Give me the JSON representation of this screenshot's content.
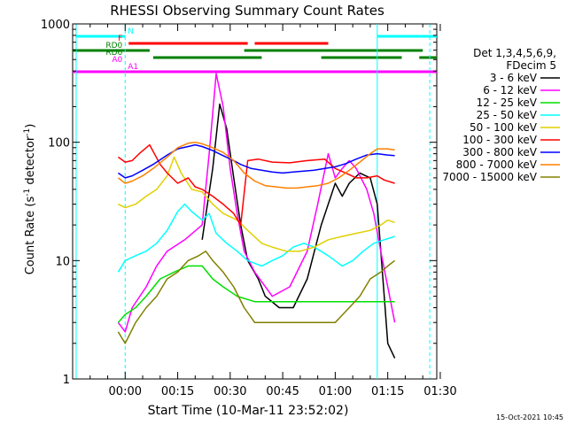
{
  "chart_data": {
    "type": "line",
    "title": "RHESSI Observing Summary Count Rates",
    "xlabel": "Start Time (10-Mar-11 23:52:02)",
    "ylabel_main": "Count Rate (s",
    "ylabel_sup1": "-1",
    "ylabel_mid": " detector",
    "ylabel_sup2": "-1",
    "ylabel_end": ")",
    "y_scale": "log",
    "ylim": [
      1,
      1000
    ],
    "xlim_minutes": [
      -7,
      97
    ],
    "x_ticks": [
      {
        "label": "00:00",
        "t": 8
      },
      {
        "label": "00:15",
        "t": 23
      },
      {
        "label": "00:30",
        "t": 38
      },
      {
        "label": "00:45",
        "t": 53
      },
      {
        "label": "01:00",
        "t": 68
      },
      {
        "label": "01:15",
        "t": 83
      },
      {
        "label": "01:30",
        "t": 98
      }
    ],
    "y_ticks": [
      {
        "label": "1",
        "v": 1
      },
      {
        "label": "10",
        "v": 10
      },
      {
        "label": "100",
        "v": 100
      },
      {
        "label": "1000",
        "v": 1000
      }
    ],
    "legend_header": [
      "Det 1,3,4,5,6,9,",
      "FDecim 5"
    ],
    "legend": [
      {
        "label": "3 - 6 keV",
        "color": "#000000"
      },
      {
        "label": "6 - 12 keV",
        "color": "#ff00ff"
      },
      {
        "label": "12 - 25 keV",
        "color": "#00e000"
      },
      {
        "label": "25 - 50 keV",
        "color": "#00ffff"
      },
      {
        "label": "50 - 100 keV",
        "color": "#e0d000"
      },
      {
        "label": "100 - 300 keV",
        "color": "#ff0000"
      },
      {
        "label": "300 - 800 keV",
        "color": "#0000ff"
      },
      {
        "label": "800 - 7000 keV",
        "color": "#ff8000"
      },
      {
        "label": "7000 - 15000 keV",
        "color": "#808000"
      }
    ],
    "flag_bars": [
      {
        "label": "N",
        "color": "#00ffff",
        "level": 1,
        "segments": [
          [
            -6,
            8
          ],
          [
            80,
            97
          ]
        ]
      },
      {
        "label": "F",
        "color": "#ff0000",
        "level": 2,
        "segments": [
          [
            9,
            43
          ],
          [
            45,
            66
          ]
        ]
      },
      {
        "label": "RD0",
        "color": "#008000",
        "level": 3,
        "segments": [
          [
            -7,
            15
          ],
          [
            42,
            93
          ]
        ]
      },
      {
        "label": "RD6",
        "color": "#008000",
        "level": 4,
        "segments": [
          [
            16,
            47
          ],
          [
            64,
            87
          ],
          [
            92,
            97
          ]
        ]
      },
      {
        "label": "A0",
        "color": "#ff00ff",
        "level": 5,
        "segments": []
      },
      {
        "label": "A1",
        "color": "#ff00ff",
        "level": 6,
        "segments": [
          [
            -7,
            8
          ],
          [
            8,
            97
          ]
        ]
      }
    ],
    "night_markers_minutes": [
      -6,
      8,
      80,
      95
    ],
    "series": [
      {
        "name": "3 - 6 keV",
        "color": "#000000",
        "points": [
          [
            30,
            15
          ],
          [
            33,
            60
          ],
          [
            35,
            210
          ],
          [
            37,
            130
          ],
          [
            39,
            50
          ],
          [
            41,
            20
          ],
          [
            43,
            10
          ],
          [
            46,
            7
          ],
          [
            48,
            5
          ],
          [
            52,
            4
          ],
          [
            56,
            4
          ],
          [
            60,
            7
          ],
          [
            64,
            20
          ],
          [
            68,
            45
          ],
          [
            70,
            35
          ],
          [
            72,
            45
          ],
          [
            75,
            55
          ],
          [
            78,
            50
          ],
          [
            80,
            30
          ],
          [
            82,
            5
          ],
          [
            83,
            2
          ],
          [
            85,
            1.5
          ]
        ]
      },
      {
        "name": "6 - 12 keV",
        "color": "#ff00ff",
        "points": [
          [
            6,
            3
          ],
          [
            8,
            2.5
          ],
          [
            10,
            4
          ],
          [
            14,
            6
          ],
          [
            17,
            9
          ],
          [
            20,
            12
          ],
          [
            25,
            15
          ],
          [
            30,
            20
          ],
          [
            32,
            80
          ],
          [
            34,
            380
          ],
          [
            36,
            200
          ],
          [
            38,
            60
          ],
          [
            40,
            25
          ],
          [
            42,
            12
          ],
          [
            45,
            8
          ],
          [
            50,
            5
          ],
          [
            55,
            6
          ],
          [
            60,
            12
          ],
          [
            63,
            30
          ],
          [
            66,
            80
          ],
          [
            68,
            50
          ],
          [
            70,
            60
          ],
          [
            72,
            70
          ],
          [
            74,
            60
          ],
          [
            77,
            40
          ],
          [
            79,
            25
          ],
          [
            81,
            12
          ],
          [
            83,
            6
          ],
          [
            85,
            3
          ]
        ]
      },
      {
        "name": "12 - 25 keV",
        "color": "#00e000",
        "points": [
          [
            6,
            3
          ],
          [
            8,
            3.5
          ],
          [
            11,
            4
          ],
          [
            14,
            5
          ],
          [
            18,
            7
          ],
          [
            22,
            8
          ],
          [
            26,
            9
          ],
          [
            30,
            9
          ],
          [
            33,
            7
          ],
          [
            36,
            6
          ],
          [
            40,
            5
          ],
          [
            45,
            4.5
          ],
          [
            50,
            4.5
          ],
          [
            55,
            4.5
          ],
          [
            60,
            4.5
          ],
          [
            65,
            4.5
          ],
          [
            70,
            4.5
          ],
          [
            75,
            4.5
          ],
          [
            80,
            4.5
          ],
          [
            85,
            4.5
          ]
        ]
      },
      {
        "name": "25 - 50 keV",
        "color": "#00ffff",
        "points": [
          [
            6,
            8
          ],
          [
            8,
            10
          ],
          [
            11,
            11
          ],
          [
            14,
            12
          ],
          [
            17,
            14
          ],
          [
            20,
            18
          ],
          [
            23,
            26
          ],
          [
            25,
            30
          ],
          [
            27,
            26
          ],
          [
            30,
            22
          ],
          [
            32,
            25
          ],
          [
            34,
            17
          ],
          [
            37,
            14
          ],
          [
            40,
            12
          ],
          [
            43,
            10
          ],
          [
            47,
            9
          ],
          [
            50,
            10
          ],
          [
            53,
            11
          ],
          [
            56,
            13
          ],
          [
            59,
            14
          ],
          [
            62,
            13
          ],
          [
            66,
            11
          ],
          [
            70,
            9
          ],
          [
            73,
            10
          ],
          [
            76,
            12
          ],
          [
            79,
            14
          ],
          [
            82,
            15
          ],
          [
            85,
            16
          ]
        ]
      },
      {
        "name": "50 - 100 keV",
        "color": "#e0d000",
        "points": [
          [
            6,
            30
          ],
          [
            8,
            28
          ],
          [
            11,
            30
          ],
          [
            14,
            35
          ],
          [
            17,
            40
          ],
          [
            20,
            52
          ],
          [
            22,
            75
          ],
          [
            24,
            55
          ],
          [
            27,
            40
          ],
          [
            30,
            38
          ],
          [
            33,
            30
          ],
          [
            36,
            25
          ],
          [
            40,
            22
          ],
          [
            43,
            18
          ],
          [
            47,
            14
          ],
          [
            50,
            13
          ],
          [
            54,
            12
          ],
          [
            58,
            12
          ],
          [
            62,
            13
          ],
          [
            66,
            15
          ],
          [
            70,
            16
          ],
          [
            74,
            17
          ],
          [
            78,
            18
          ],
          [
            81,
            20
          ],
          [
            83,
            22
          ],
          [
            85,
            21
          ]
        ]
      },
      {
        "name": "100 - 300 keV",
        "color": "#ff0000",
        "points": [
          [
            6,
            75
          ],
          [
            8,
            68
          ],
          [
            10,
            70
          ],
          [
            12,
            80
          ],
          [
            15,
            95
          ],
          [
            18,
            65
          ],
          [
            20,
            55
          ],
          [
            23,
            45
          ],
          [
            26,
            50
          ],
          [
            28,
            42
          ],
          [
            30,
            40
          ],
          [
            33,
            35
          ],
          [
            36,
            30
          ],
          [
            39,
            25
          ],
          [
            41,
            20
          ],
          [
            43,
            70
          ],
          [
            46,
            72
          ],
          [
            50,
            68
          ],
          [
            55,
            67
          ],
          [
            60,
            70
          ],
          [
            65,
            72
          ],
          [
            68,
            60
          ],
          [
            71,
            55
          ],
          [
            74,
            50
          ],
          [
            77,
            50
          ],
          [
            80,
            52
          ],
          [
            82,
            48
          ],
          [
            85,
            45
          ]
        ]
      },
      {
        "name": "300 - 800 keV",
        "color": "#0000ff",
        "points": [
          [
            6,
            55
          ],
          [
            8,
            50
          ],
          [
            10,
            52
          ],
          [
            13,
            58
          ],
          [
            16,
            65
          ],
          [
            20,
            78
          ],
          [
            23,
            88
          ],
          [
            26,
            92
          ],
          [
            28,
            95
          ],
          [
            30,
            92
          ],
          [
            33,
            85
          ],
          [
            36,
            77
          ],
          [
            39,
            70
          ],
          [
            41,
            65
          ],
          [
            44,
            60
          ],
          [
            47,
            58
          ],
          [
            50,
            56
          ],
          [
            53,
            55
          ],
          [
            56,
            56
          ],
          [
            59,
            57
          ],
          [
            62,
            58
          ],
          [
            65,
            60
          ],
          [
            68,
            62
          ],
          [
            71,
            66
          ],
          [
            74,
            72
          ],
          [
            77,
            78
          ],
          [
            80,
            80
          ],
          [
            83,
            78
          ],
          [
            85,
            77
          ]
        ]
      },
      {
        "name": "800 - 7000 keV",
        "color": "#ff8000",
        "points": [
          [
            6,
            50
          ],
          [
            8,
            45
          ],
          [
            10,
            47
          ],
          [
            13,
            52
          ],
          [
            16,
            60
          ],
          [
            20,
            75
          ],
          [
            23,
            90
          ],
          [
            26,
            98
          ],
          [
            28,
            100
          ],
          [
            30,
            97
          ],
          [
            33,
            90
          ],
          [
            36,
            82
          ],
          [
            39,
            70
          ],
          [
            42,
            55
          ],
          [
            45,
            47
          ],
          [
            48,
            43
          ],
          [
            51,
            42
          ],
          [
            54,
            41
          ],
          [
            57,
            41
          ],
          [
            60,
            42
          ],
          [
            63,
            43
          ],
          [
            66,
            45
          ],
          [
            69,
            50
          ],
          [
            72,
            58
          ],
          [
            75,
            68
          ],
          [
            78,
            80
          ],
          [
            80,
            88
          ],
          [
            83,
            88
          ],
          [
            85,
            86
          ]
        ]
      },
      {
        "name": "7000 - 15000 keV",
        "color": "#808000",
        "points": [
          [
            6,
            2.5
          ],
          [
            8,
            2
          ],
          [
            11,
            3
          ],
          [
            14,
            4
          ],
          [
            17,
            5
          ],
          [
            20,
            7
          ],
          [
            23,
            8
          ],
          [
            26,
            10
          ],
          [
            29,
            11
          ],
          [
            31,
            12
          ],
          [
            33,
            10
          ],
          [
            36,
            8
          ],
          [
            39,
            6
          ],
          [
            42,
            4
          ],
          [
            45,
            3
          ],
          [
            48,
            3
          ],
          [
            52,
            3
          ],
          [
            56,
            3
          ],
          [
            60,
            3
          ],
          [
            64,
            3
          ],
          [
            68,
            3
          ],
          [
            72,
            4
          ],
          [
            75,
            5
          ],
          [
            78,
            7
          ],
          [
            81,
            8
          ],
          [
            83,
            9
          ],
          [
            85,
            10
          ]
        ]
      }
    ]
  },
  "footer_date": "15-Oct-2021 10:45"
}
